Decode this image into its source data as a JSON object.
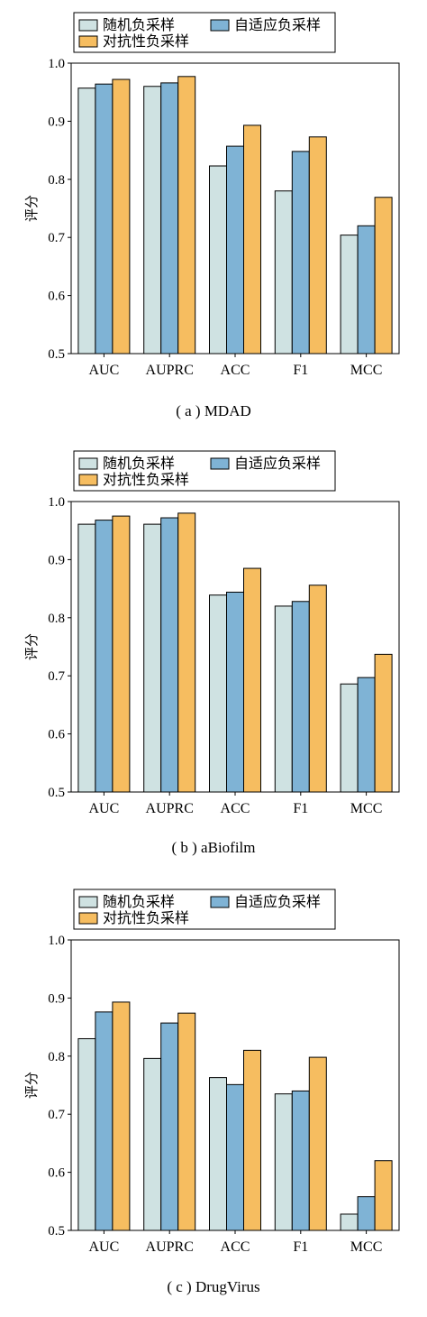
{
  "chart_data": [
    {
      "type": "bar",
      "caption": "( a ) MDAD",
      "ylabel": "评分",
      "ylim": [
        0.5,
        1.0
      ],
      "yticks": [
        "0.5",
        "0.6",
        "0.7",
        "0.8",
        "0.9",
        "1.0"
      ],
      "categories": [
        "AUC",
        "AUPRC",
        "ACC",
        "F1",
        "MCC"
      ],
      "legend_position": "top-left",
      "series": [
        {
          "name": "随机负采样",
          "color": "#cfe2e2",
          "values": [
            0.957,
            0.96,
            0.823,
            0.78,
            0.704
          ]
        },
        {
          "name": "自适应负采样",
          "color": "#7fb3d5",
          "values": [
            0.964,
            0.966,
            0.857,
            0.848,
            0.72
          ]
        },
        {
          "name": "对抗性负采样",
          "color": "#f6bd60",
          "values": [
            0.972,
            0.977,
            0.893,
            0.873,
            0.769
          ]
        }
      ]
    },
    {
      "type": "bar",
      "caption": "( b ) aBiofilm",
      "ylabel": "评分",
      "ylim": [
        0.5,
        1.0
      ],
      "yticks": [
        "0.5",
        "0.6",
        "0.7",
        "0.8",
        "0.9",
        "1.0"
      ],
      "categories": [
        "AUC",
        "AUPRC",
        "ACC",
        "F1",
        "MCC"
      ],
      "legend_position": "top-left",
      "series": [
        {
          "name": "随机负采样",
          "color": "#cfe2e2",
          "values": [
            0.961,
            0.961,
            0.839,
            0.82,
            0.686
          ]
        },
        {
          "name": "自适应负采样",
          "color": "#7fb3d5",
          "values": [
            0.968,
            0.972,
            0.844,
            0.828,
            0.697
          ]
        },
        {
          "name": "对抗性负采样",
          "color": "#f6bd60",
          "values": [
            0.975,
            0.98,
            0.885,
            0.856,
            0.737
          ]
        }
      ]
    },
    {
      "type": "bar",
      "caption": "( c ) DrugVirus",
      "ylabel": "评分",
      "ylim": [
        0.5,
        1.0
      ],
      "yticks": [
        "0.5",
        "0.6",
        "0.7",
        "0.8",
        "0.9",
        "1.0"
      ],
      "categories": [
        "AUC",
        "AUPRC",
        "ACC",
        "F1",
        "MCC"
      ],
      "legend_position": "top-left",
      "series": [
        {
          "name": "随机负采样",
          "color": "#cfe2e2",
          "values": [
            0.83,
            0.796,
            0.763,
            0.735,
            0.528
          ]
        },
        {
          "name": "自适应负采样",
          "color": "#7fb3d5",
          "values": [
            0.876,
            0.857,
            0.751,
            0.74,
            0.558
          ]
        },
        {
          "name": "对抗性负采样",
          "color": "#f6bd60",
          "values": [
            0.893,
            0.874,
            0.81,
            0.798,
            0.62
          ]
        }
      ]
    }
  ]
}
